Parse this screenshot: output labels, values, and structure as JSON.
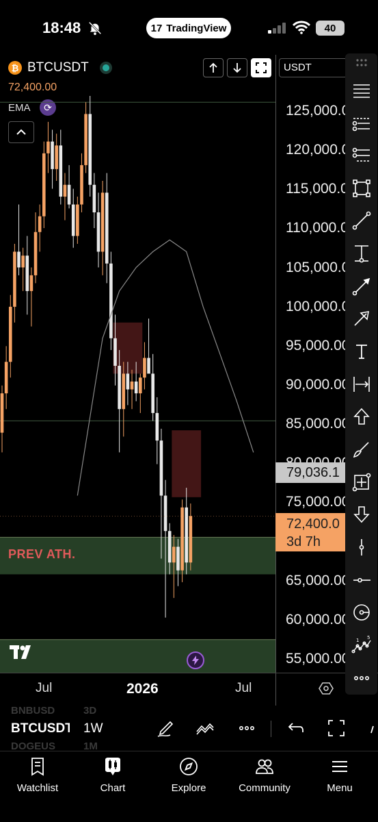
{
  "status_bar": {
    "time": "18:48",
    "app_pill": "TradingView",
    "battery": "40"
  },
  "chart_header": {
    "symbol": "BTCUSDT",
    "last_price": "72,400.00",
    "indicator": "EMA",
    "currency": "USDT"
  },
  "price_axis": {
    "ticks": [
      "125,000.00",
      "120,000.00",
      "115,000.00",
      "110,000.00",
      "105,000.00",
      "100,000.00",
      "95,000.00",
      "90,000.00",
      "85,000.00",
      "80,000.00",
      "75,000.00",
      "65,000.00",
      "60,000.00",
      "55,000.00"
    ],
    "ema_tag": "79,036.1",
    "price_tag": "72,400.0",
    "countdown": "3d 7h"
  },
  "time_axis": {
    "ticks": [
      "Jul",
      "2026",
      "Jul"
    ]
  },
  "annotations": {
    "zone_label": "PREV ATH."
  },
  "bottom_controls": {
    "symbol": "BTCUSDT",
    "timeframe": "1W",
    "ghost_above_symbol": "BNBUSD",
    "ghost_above_tf": "3D",
    "ghost_below_symbol": "DOGEUS",
    "ghost_below_tf": "1M"
  },
  "nav": {
    "watchlist": "Watchlist",
    "chart": "Chart",
    "explore": "Explore",
    "community": "Community",
    "menu": "Menu"
  },
  "colors": {
    "up": "#f5a264",
    "down": "#e8e8e8",
    "ema_line": "#8a8a8a",
    "resistance_zone": "#5a1e1e",
    "support_zone": "#2d4a2d",
    "accent_purple": "#9a5cd6"
  },
  "chart_data": {
    "type": "candlestick",
    "ema_value": 79036.1,
    "last_price": 72400,
    "candles": [
      [
        83000,
        89000,
        80500,
        88000
      ],
      [
        88000,
        94000,
        86000,
        92000
      ],
      [
        92000,
        100500,
        90000,
        99000
      ],
      [
        99000,
        107000,
        97000,
        106000
      ],
      [
        106000,
        112000,
        103000,
        104000
      ],
      [
        104000,
        106500,
        101000,
        105500
      ],
      [
        105500,
        108000,
        98000,
        101000
      ],
      [
        101000,
        104000,
        96500,
        103000
      ],
      [
        103000,
        111000,
        102000,
        108500
      ],
      [
        108500,
        112000,
        106000,
        110500
      ],
      [
        110500,
        120000,
        109000,
        118500
      ],
      [
        118500,
        122500,
        116000,
        120000
      ],
      [
        120000,
        121500,
        114000,
        116500
      ],
      [
        116500,
        121000,
        115000,
        119500
      ],
      [
        119500,
        121500,
        112000,
        113000
      ],
      [
        113000,
        116000,
        110000,
        114500
      ],
      [
        114500,
        117000,
        111500,
        112000
      ],
      [
        112000,
        114000,
        106500,
        108000
      ],
      [
        108000,
        113000,
        107000,
        112000
      ],
      [
        112000,
        118500,
        111000,
        117000
      ],
      [
        117000,
        125000,
        116000,
        123500
      ],
      [
        123500,
        126000,
        113000,
        114500
      ],
      [
        114500,
        116000,
        109000,
        111000
      ],
      [
        111000,
        113500,
        104000,
        106000
      ],
      [
        106000,
        115000,
        103000,
        113500
      ],
      [
        113500,
        116000,
        102000,
        104500
      ],
      [
        104500,
        106000,
        93500,
        95000
      ],
      [
        95000,
        98000,
        89000,
        91500
      ],
      [
        91500,
        93500,
        80500,
        86000
      ],
      [
        86000,
        92000,
        82500,
        90500
      ],
      [
        90500,
        92000,
        86500,
        88500
      ],
      [
        88500,
        91000,
        86000,
        89500
      ],
      [
        89500,
        92000,
        87000,
        88000
      ],
      [
        88000,
        90500,
        85500,
        90000
      ],
      [
        90000,
        94500,
        88500,
        92500
      ],
      [
        92500,
        97500,
        91000,
        90500
      ],
      [
        90500,
        93000,
        84500,
        85500
      ],
      [
        85500,
        87500,
        79000,
        82000
      ],
      [
        82000,
        83500,
        67000,
        75000
      ],
      [
        75000,
        77000,
        59500,
        70500
      ],
      [
        70500,
        71500,
        65000,
        66500
      ],
      [
        66500,
        70000,
        62000,
        68500
      ],
      [
        68500,
        69500,
        63500,
        65500
      ],
      [
        65500,
        74500,
        64000,
        73500
      ],
      [
        73500,
        76000,
        65000,
        66500
      ],
      [
        66500,
        74000,
        65500,
        72400
      ]
    ],
    "ema_series": [
      [
        18,
        75000
      ],
      [
        24,
        95000
      ],
      [
        28,
        101000
      ],
      [
        32,
        104000
      ],
      [
        36,
        106000
      ],
      [
        40,
        107500
      ],
      [
        44,
        106000
      ],
      [
        48,
        99000
      ],
      [
        52,
        93000
      ],
      [
        56,
        87000
      ],
      [
        60,
        80500
      ]
    ],
    "zones": [
      {
        "kind": "resistance",
        "from_index": 27,
        "to_index": 33,
        "price_top": 97000,
        "price_bottom": 90500
      },
      {
        "kind": "resistance",
        "from_index": 41,
        "to_index": 47,
        "price_top": 83300,
        "price_bottom": 74800
      },
      {
        "kind": "support",
        "label": "PREV ATH.",
        "price_top": 69700,
        "price_bottom": 65000
      },
      {
        "kind": "support",
        "price_top": 56700,
        "price_bottom": 52500
      }
    ],
    "levels": [
      125000,
      84500
    ],
    "ylim": [
      52500,
      125800
    ],
    "grid": false
  }
}
